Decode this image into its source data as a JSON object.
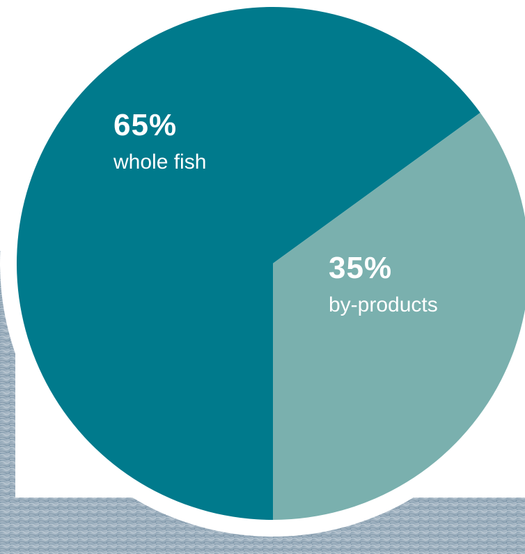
{
  "chart_data": {
    "type": "pie",
    "categories": [
      "whole fish",
      "by-products"
    ],
    "values": [
      65,
      35
    ],
    "value_labels": [
      "65%",
      "35%"
    ],
    "colors": [
      "#007a8c",
      "#7ab0ae"
    ]
  }
}
